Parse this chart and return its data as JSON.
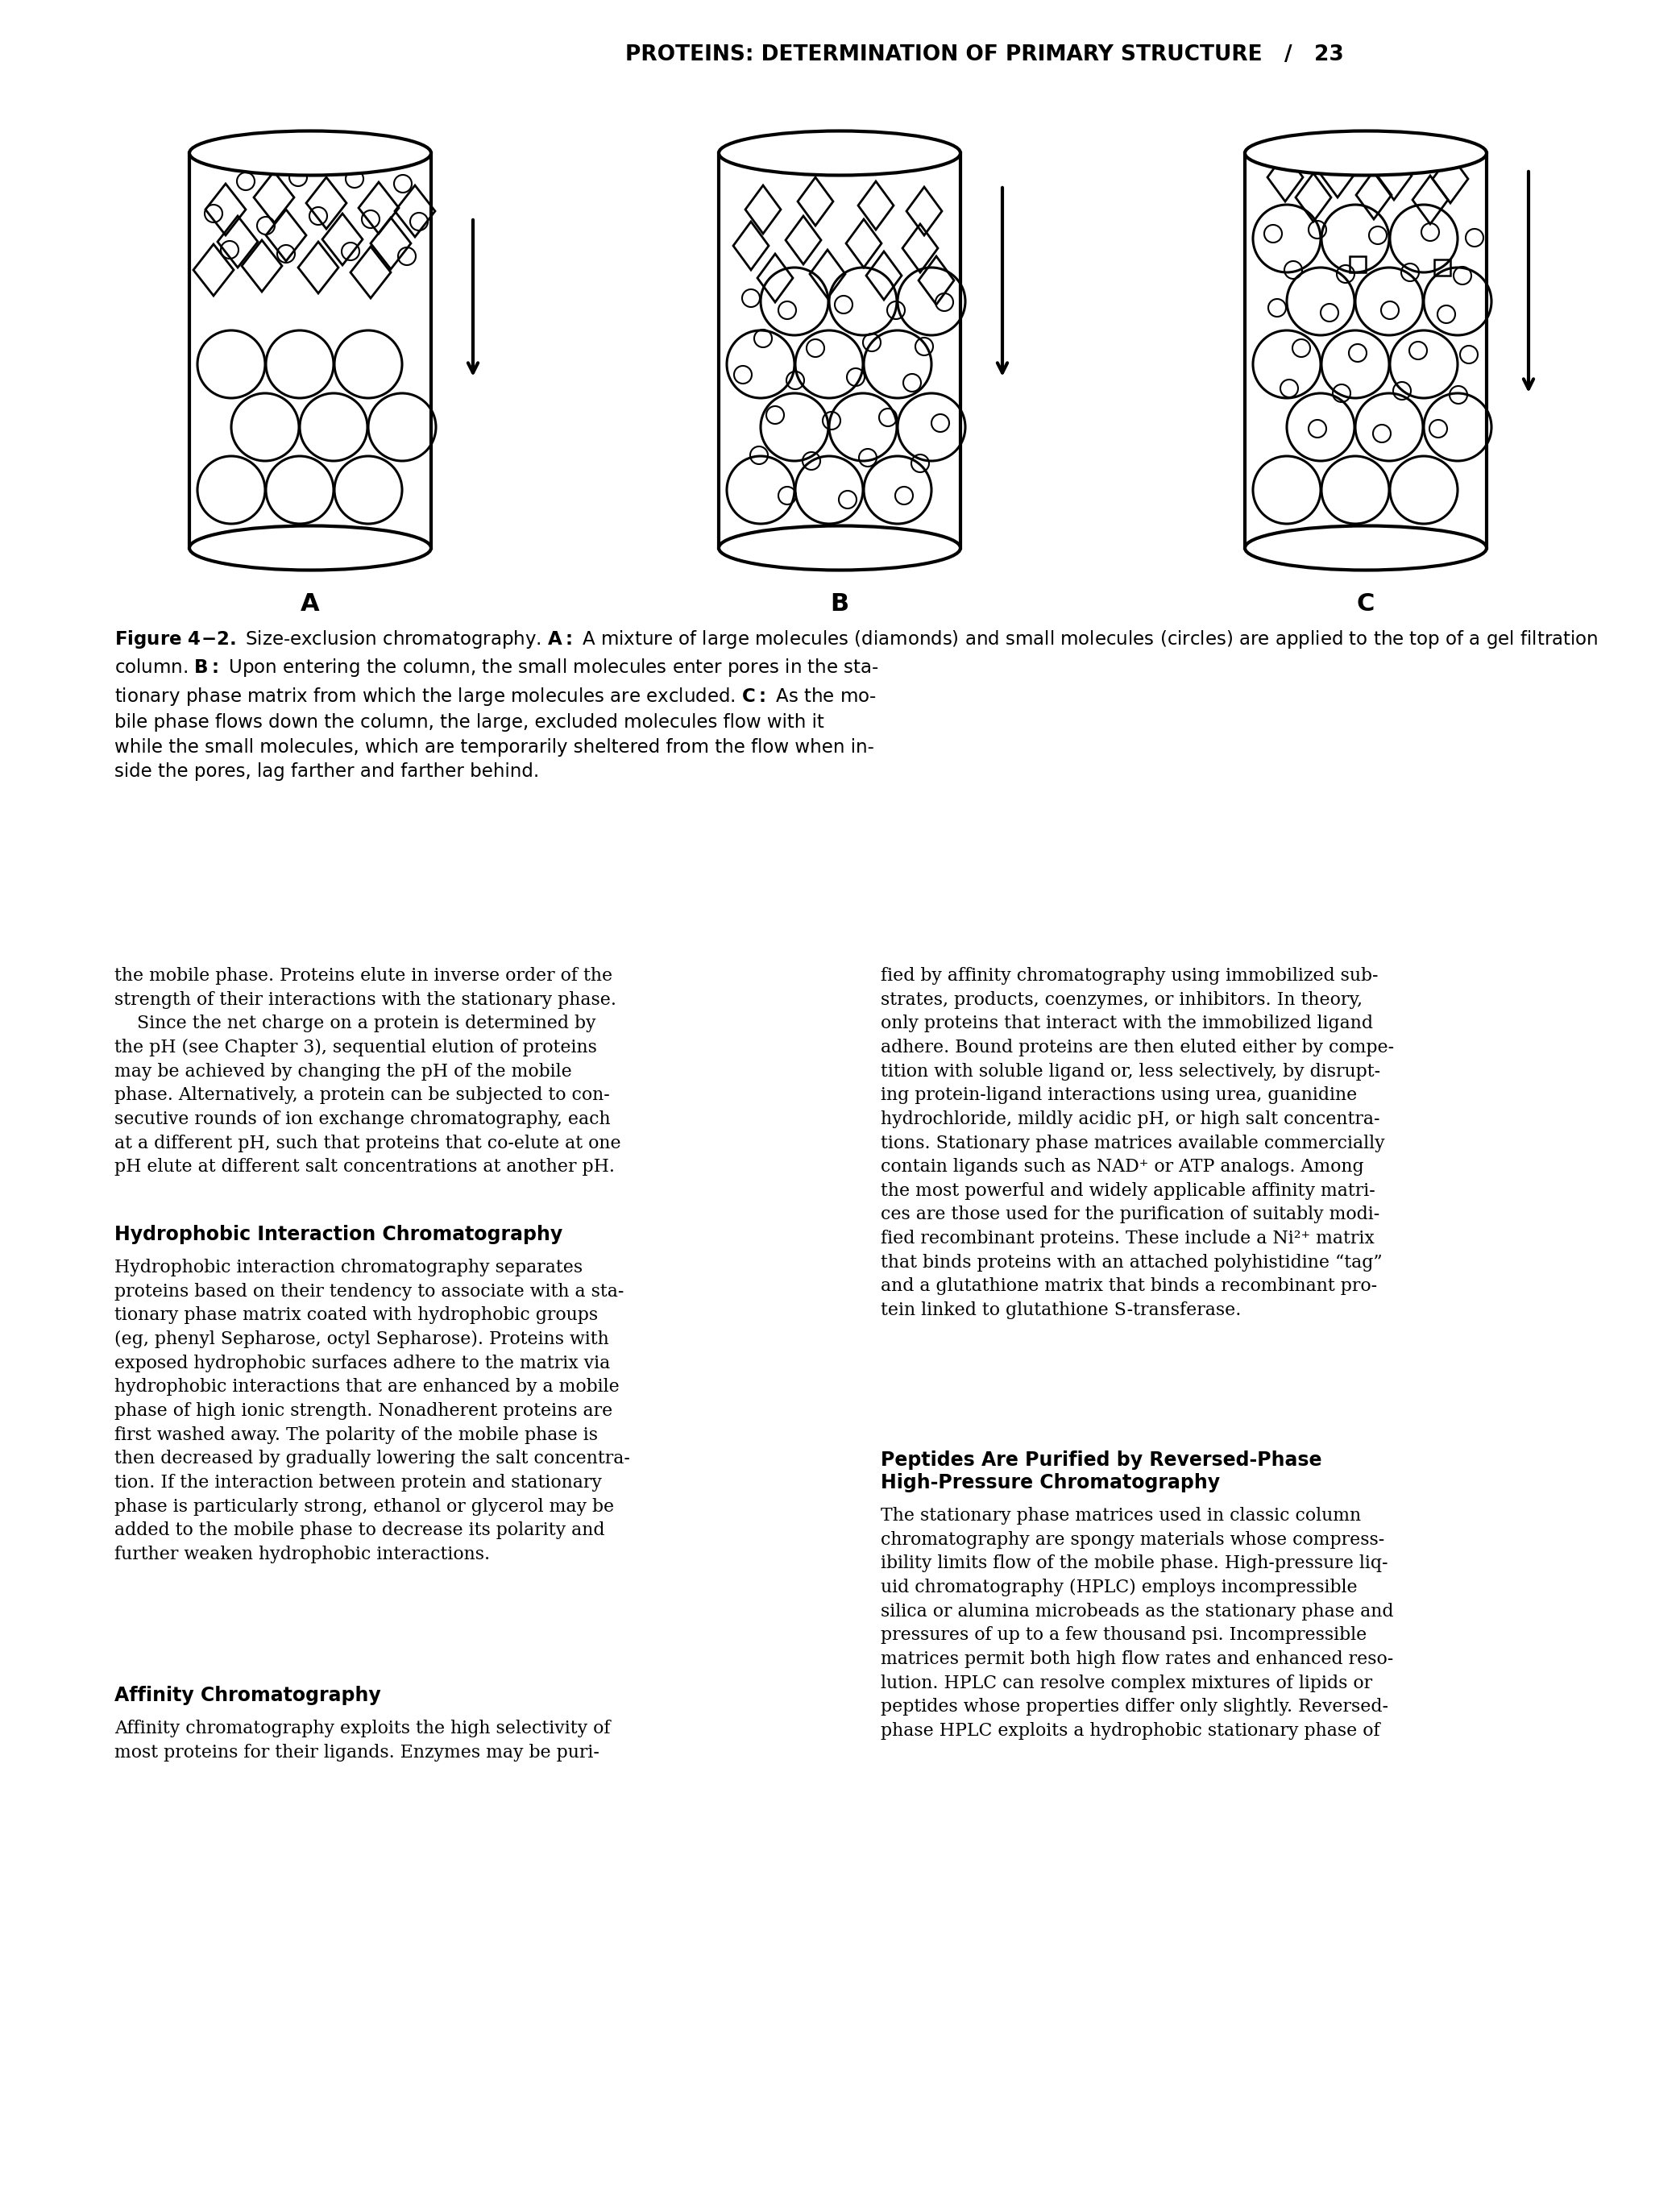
{
  "page_header": "PROTEINS: DETERMINATION OF PRIMARY STRUCTURE   /   23",
  "section1_title": "Hydrophobic Interaction Chromatography",
  "section1_body": "Hydrophobic interaction chromatography separates\nproteins based on their tendency to associate with a sta-\ntionary phase matrix coated with hydrophobic groups\n(eg, phenyl Sepharose, octyl Sepharose). Proteins with\nexposed hydrophobic surfaces adhere to the matrix via\nhydrophobic interactions that are enhanced by a mobile\nphase of high ionic strength. Nonadherent proteins are\nfirst washed away. The polarity of the mobile phase is\nthen decreased by gradually lowering the salt concentra-\ntion. If the interaction between protein and stationary\nphase is particularly strong, ethanol or glycerol may be\nadded to the mobile phase to decrease its polarity and\nfurther weaken hydrophobic interactions.",
  "section2_title": "Affinity Chromatography",
  "section2_body": "Affinity chromatography exploits the high selectivity of\nmost proteins for their ligands. Enzymes may be puri-",
  "section3_title_right": "Peptides Are Purified by Reversed-Phase\nHigh-Pressure Chromatography",
  "section3_body_right": "The stationary phase matrices used in classic column\nchromatography are spongy materials whose compress-\nibility limits flow of the mobile phase. High-pressure liq-\nuid chromatography (HPLC) employs incompressible\nsilica or alumina microbeads as the stationary phase and\npressures of up to a few thousand psi. Incompressible\nmatrices permit both high flow rates and enhanced reso-\nlution. HPLC can resolve complex mixtures of lipids or\npeptides whose properties differ only slightly. Reversed-\nphase HPLC exploits a hydrophobic stationary phase of",
  "right_col_body": "fied by affinity chromatography using immobilized sub-\nstrates, products, coenzymes, or inhibitors. In theory,\nonly proteins that interact with the immobilized ligand\nadhere. Bound proteins are then eluted either by compe-\ntition with soluble ligand or, less selectively, by disrupt-\ning protein-ligand interactions using urea, guanidine\nhydrochloride, mildly acidic pH, or high salt concentra-\ntions. Stationary phase matrices available commercially\ncontain ligands such as NAD⁺ or ATP analogs. Among\nthe most powerful and widely applicable affinity matri-\nces are those used for the purification of suitably modi-\nfied recombinant proteins. These include a Ni²⁺ matrix\nthat binds proteins with an attached polyhistidine “tag”\nand a glutathione matrix that binds a recombinant pro-\ntein linked to glutathione S-transferase.",
  "intro_text_left": "the mobile phase. Proteins elute in inverse order of the\nstrength of their interactions with the stationary phase.\n    Since the net charge on a protein is determined by\nthe pH (see Chapter 3), sequential elution of proteins\nmay be achieved by changing the pH of the mobile\nphase. Alternatively, a protein can be subjected to con-\nsecutive rounds of ion exchange chromatography, each\nat a different pH, such that proteins that co-elute at one\npH elute at different salt concentrations at another pH.",
  "bg_color": "#ffffff",
  "text_color": "#000000"
}
